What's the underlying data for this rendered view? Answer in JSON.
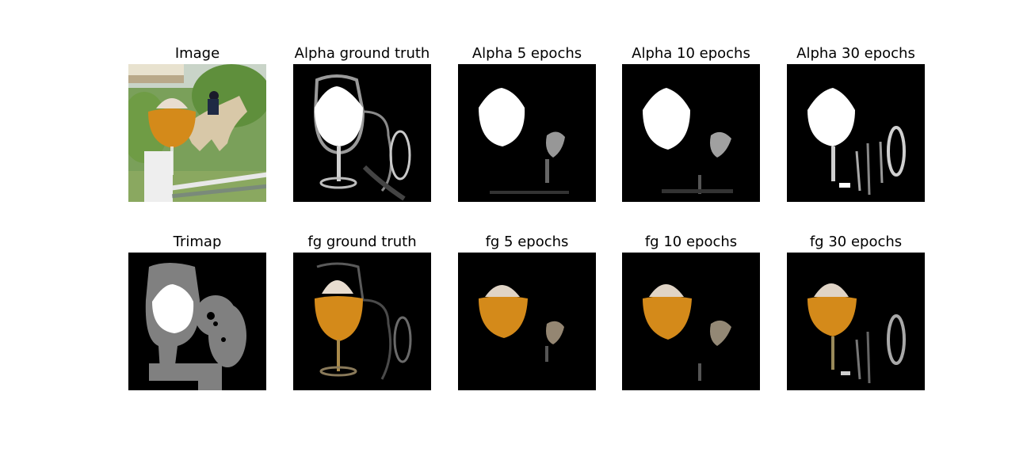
{
  "figure": {
    "row1": [
      {
        "title": "Image",
        "kind": "image"
      },
      {
        "title": "Alpha ground truth",
        "kind": "alpha_gt"
      },
      {
        "title": "Alpha 5 epochs",
        "kind": "alpha_5"
      },
      {
        "title": "Alpha 10 epochs",
        "kind": "alpha_10"
      },
      {
        "title": "Alpha 30 epochs",
        "kind": "alpha_30"
      }
    ],
    "row2": [
      {
        "title": "Trimap",
        "kind": "trimap"
      },
      {
        "title": "fg ground truth",
        "kind": "fg_gt"
      },
      {
        "title": "fg 5 epochs",
        "kind": "fg_5"
      },
      {
        "title": "fg 10 epochs",
        "kind": "fg_10"
      },
      {
        "title": "fg 30 epochs",
        "kind": "fg_30"
      }
    ]
  },
  "colors": {
    "background": "#000000",
    "alpha": "#ffffff",
    "trimap_unknown": "#808080",
    "drink": "#d48a1a",
    "foam": "#e8ddd0"
  }
}
